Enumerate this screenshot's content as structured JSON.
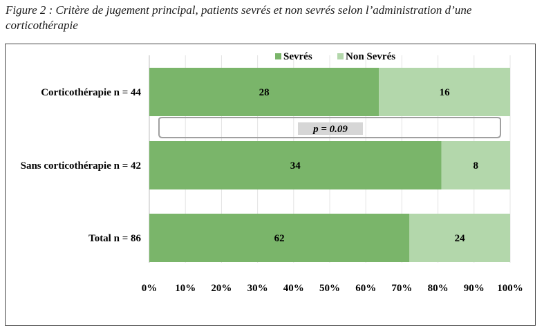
{
  "caption": "Figure 2 : Critère de jugement principal, patients sevrés et non sevrés selon l’administration d’une corticothérapie",
  "colors": {
    "sevres": "#7ab56a",
    "non_sevres": "#b3d7ab",
    "pvalue_box": "#d6d6d6",
    "bracket": "#a0a0a0"
  },
  "chart_data": {
    "type": "bar",
    "orientation": "horizontal",
    "stacked": "percent",
    "categories": [
      "Corticothérapie n = 44",
      "Sans corticothérapie n = 42",
      "Total n = 86"
    ],
    "series": [
      {
        "name": "Sevrés",
        "values": [
          28,
          34,
          62
        ]
      },
      {
        "name": "Non Sevrés",
        "values": [
          16,
          8,
          24
        ]
      }
    ],
    "xlim": [
      0,
      100
    ],
    "xticks": [
      "0%",
      "10%",
      "20%",
      "30%",
      "40%",
      "50%",
      "60%",
      "70%",
      "80%",
      "90%",
      "100%"
    ],
    "legend_position": "top",
    "grid": true,
    "annotation": {
      "text": "p = 0.09",
      "between": [
        0,
        1
      ]
    }
  }
}
